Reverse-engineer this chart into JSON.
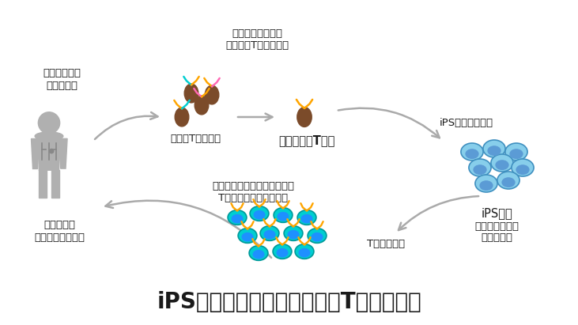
{
  "title": "iPS細胞を用いた治療用再生T細胞の作製",
  "title_fontsize": 20,
  "bg_color": "#ffffff",
  "labels": {
    "top_left_1": "がん患者から",
    "top_left_2": "検体を採取",
    "top_center_1": "がん細胞・抗原に",
    "top_center_2": "反応性のT細胞を分離",
    "top_center_sub": "多様なT細胞集団",
    "top_center_bold": "がん特異的T細胞",
    "top_right": "iPS細胞へ初期化",
    "right_label": "iPS細胞",
    "right_sub_1": "無限に増殖する",
    "right_sub_2": "能力を持つ",
    "bottom_right": "T細胞を再生",
    "bottom_center_1": "機能的に若返ったがん特異的",
    "bottom_center_2": "T細胞が大量に得られる",
    "bottom_left_1": "移植による",
    "bottom_left_2": "がん免疫細胞治療"
  },
  "arrow_color": "#aaaaaa",
  "text_color": "#1a1a1a",
  "human_color": "#b0b0b0",
  "tcell_body_color": "#7B4B2A",
  "ips_outer_color": "#87CEEB",
  "ips_inner_color": "#5B9BD5",
  "regen_outer_color": "#00CED1",
  "regen_inner_color": "#1E90FF",
  "receptor_orange": "#FFA500",
  "receptor_cyan": "#00CED1",
  "receptor_pink": "#FF69B4"
}
